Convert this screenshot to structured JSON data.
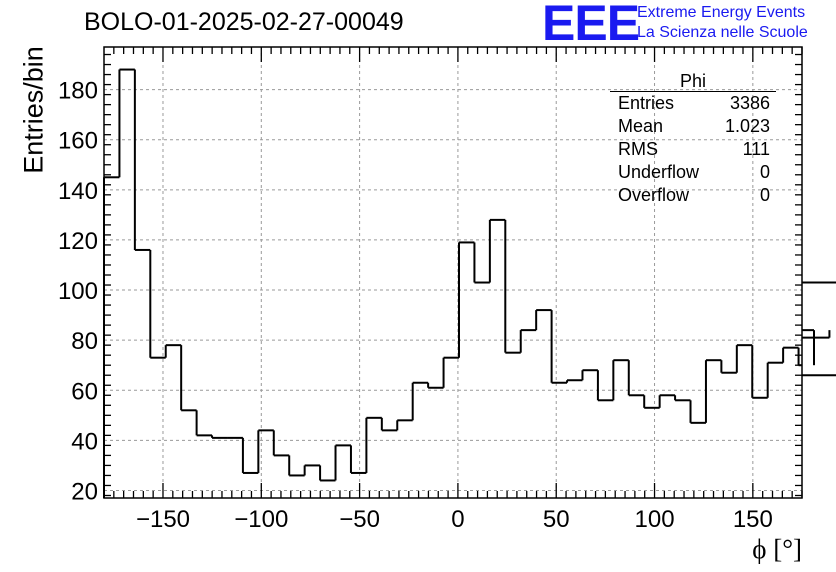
{
  "chart_data": {
    "type": "bar",
    "title": "BOLO-01-2025-02-27-00049",
    "xlabel": "ϕ [°]",
    "ylabel": "Entries/bin",
    "xlim": [
      -180,
      175
    ],
    "ylim": [
      17,
      197
    ],
    "x_ticks": [
      -150,
      -100,
      -50,
      0,
      50,
      100,
      150
    ],
    "y_ticks": [
      20,
      40,
      60,
      80,
      100,
      120,
      140,
      160,
      180
    ],
    "grid": true,
    "bin_width": 7.85,
    "bin_edges_start": -180,
    "values": [
      145,
      188,
      116,
      73,
      78,
      52,
      42,
      41,
      41,
      27,
      44,
      34,
      26,
      30,
      24,
      38,
      27,
      49,
      44,
      48,
      63,
      61,
      73,
      119,
      103,
      128,
      75,
      84,
      92,
      63,
      64,
      68,
      56,
      72,
      58,
      53,
      58,
      56,
      47,
      72,
      67,
      78,
      57,
      71,
      77,
      70,
      84,
      81,
      66,
      103
    ],
    "stats": {
      "name": "Phi",
      "rows": [
        {
          "label": "Entries",
          "value": "3386"
        },
        {
          "label": "Mean",
          "value": "1.023"
        },
        {
          "label": "RMS",
          "value": "111"
        },
        {
          "label": "Underflow",
          "value": "0"
        },
        {
          "label": "Overflow",
          "value": "0"
        }
      ]
    }
  },
  "branding": {
    "logo": "EEE",
    "line1": "Extreme Energy Events",
    "line2": "La Scienza nelle Scuole",
    "color": "#1a1af0"
  }
}
